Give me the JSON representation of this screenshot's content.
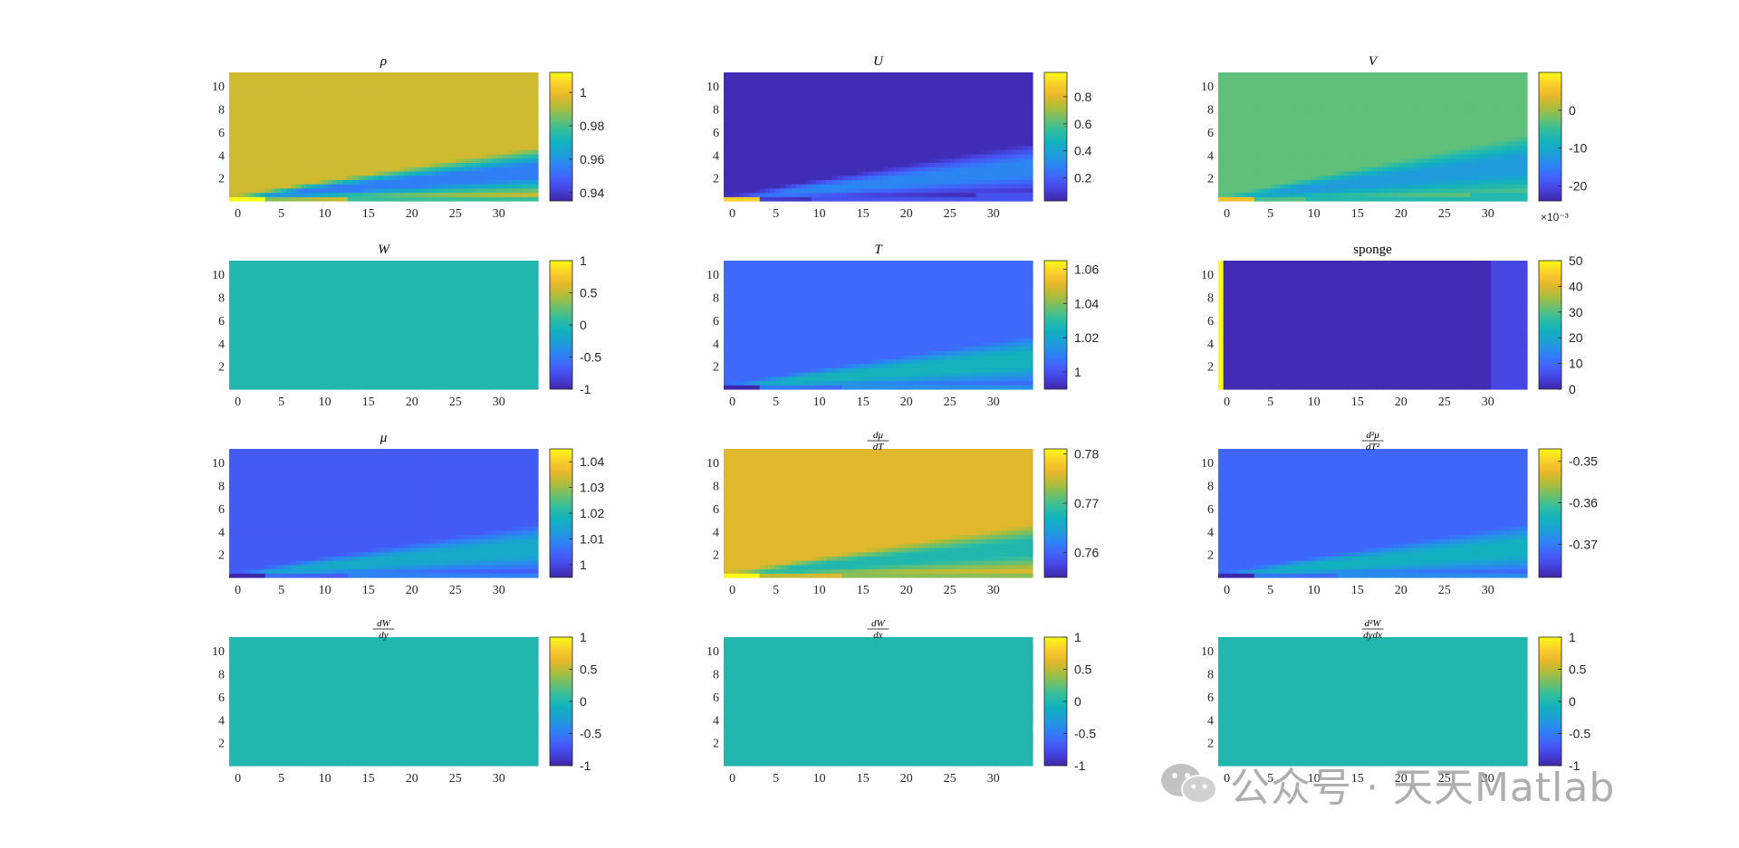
{
  "chart_data": [
    {
      "type": "heatmap",
      "title": "ρ",
      "x_ticks": [
        "0",
        "5",
        "10",
        "15",
        "20",
        "25",
        "30"
      ],
      "y_ticks": [
        "2",
        "4",
        "6",
        "8",
        "10"
      ],
      "xlim": [
        -1,
        34.5
      ],
      "ylim": [
        0,
        11.2
      ],
      "colorbar": {
        "ticks": [
          "1",
          "0.98",
          "0.96",
          "0.94"
        ],
        "tick_values": [
          1,
          0.98,
          0.96,
          0.94
        ],
        "range": [
          0.935,
          1.012
        ]
      },
      "field": {
        "background": 0.995,
        "wake_min": 0.955,
        "wake_slope_top": 0.12,
        "wake_slope_bottom": 0.015,
        "edge_hot": 1.012
      }
    },
    {
      "type": "heatmap",
      "title": "U",
      "x_ticks": [
        "0",
        "5",
        "10",
        "15",
        "20",
        "25",
        "30"
      ],
      "y_ticks": [
        "2",
        "4",
        "6",
        "8",
        "10"
      ],
      "xlim": [
        -1,
        34.5
      ],
      "ylim": [
        0,
        11.2
      ],
      "colorbar": {
        "ticks": [
          "0.8",
          "0.6",
          "0.4",
          "0.2"
        ],
        "tick_values": [
          0.8,
          0.6,
          0.4,
          0.2
        ],
        "range": [
          0.03,
          0.98
        ]
      },
      "field": {
        "background": 0.05,
        "wake_min": 0.3,
        "wake_slope_top": 0.13,
        "wake_slope_bottom": 0.02,
        "edge_hot": 0.9
      }
    },
    {
      "type": "heatmap",
      "title": "V",
      "x_ticks": [
        "0",
        "5",
        "10",
        "15",
        "20",
        "25",
        "30"
      ],
      "y_ticks": [
        "2",
        "4",
        "6",
        "8",
        "10"
      ],
      "xlim": [
        -1,
        34.5
      ],
      "ylim": [
        0,
        11.2
      ],
      "colorbar": {
        "ticks": [
          "0",
          "-10",
          "-20"
        ],
        "tick_values": [
          0,
          -10,
          -20
        ],
        "range": [
          -24,
          10
        ],
        "exponent": "×10⁻³"
      },
      "field": {
        "background": -3,
        "wake_min": -12,
        "wake_slope_top": 0.15,
        "wake_slope_bottom": 0.02,
        "edge_hot": 5
      }
    },
    {
      "type": "heatmap",
      "title": "W",
      "x_ticks": [
        "0",
        "5",
        "10",
        "15",
        "20",
        "25",
        "30"
      ],
      "y_ticks": [
        "2",
        "4",
        "6",
        "8",
        "10"
      ],
      "xlim": [
        -1,
        34.5
      ],
      "ylim": [
        0,
        11.2
      ],
      "colorbar": {
        "ticks": [
          "1",
          "0.5",
          "0",
          "-0.5",
          "-1"
        ],
        "tick_values": [
          1,
          0.5,
          0,
          -0.5,
          -1
        ],
        "range": [
          -1,
          1
        ]
      },
      "field": {
        "uniform": 0
      }
    },
    {
      "type": "heatmap",
      "title": "T",
      "x_ticks": [
        "0",
        "5",
        "10",
        "15",
        "20",
        "25",
        "30"
      ],
      "y_ticks": [
        "2",
        "4",
        "6",
        "8",
        "10"
      ],
      "xlim": [
        -1,
        34.5
      ],
      "ylim": [
        0,
        11.2
      ],
      "colorbar": {
        "ticks": [
          "1.06",
          "1.04",
          "1.02",
          "1"
        ],
        "tick_values": [
          1.06,
          1.04,
          1.02,
          1
        ],
        "range": [
          0.99,
          1.065
        ]
      },
      "field": {
        "background": 1.005,
        "wake_min": 1.025,
        "wake_slope_top": 0.12,
        "wake_slope_bottom": 0.015,
        "edge_hot": 0.99
      }
    },
    {
      "type": "heatmap",
      "title": "sponge",
      "x_ticks": [
        "0",
        "5",
        "10",
        "15",
        "20",
        "25",
        "30"
      ],
      "y_ticks": [
        "2",
        "4",
        "6",
        "8",
        "10"
      ],
      "xlim": [
        -1,
        34.5
      ],
      "ylim": [
        0,
        11.2
      ],
      "colorbar": {
        "ticks": [
          "50",
          "40",
          "30",
          "20",
          "10",
          "0"
        ],
        "tick_values": [
          50,
          40,
          30,
          20,
          10,
          0
        ],
        "range": [
          0,
          50
        ]
      },
      "field": {
        "sponge": true,
        "left_edge": 50,
        "interior": 1,
        "right_edge": 5
      }
    },
    {
      "type": "heatmap",
      "title": "μ",
      "x_ticks": [
        "0",
        "5",
        "10",
        "15",
        "20",
        "25",
        "30"
      ],
      "y_ticks": [
        "2",
        "4",
        "6",
        "8",
        "10"
      ],
      "xlim": [
        -1,
        34.5
      ],
      "ylim": [
        0,
        11.2
      ],
      "colorbar": {
        "ticks": [
          "1.04",
          "1.03",
          "1.02",
          "1.01",
          "1"
        ],
        "tick_values": [
          1.04,
          1.03,
          1.02,
          1.01,
          1
        ],
        "range": [
          0.995,
          1.045
        ]
      },
      "field": {
        "background": 1.003,
        "wake_min": 1.016,
        "wake_slope_top": 0.12,
        "wake_slope_bottom": 0.015,
        "edge_hot": 0.995
      }
    },
    {
      "type": "heatmap",
      "title": "dμ/dT",
      "x_ticks": [
        "0",
        "5",
        "10",
        "15",
        "20",
        "25",
        "30"
      ],
      "y_ticks": [
        "2",
        "4",
        "6",
        "8",
        "10"
      ],
      "xlim": [
        -1,
        34.5
      ],
      "ylim": [
        0,
        11.2
      ],
      "colorbar": {
        "ticks": [
          "0.78",
          "0.77",
          "0.76"
        ],
        "tick_values": [
          0.78,
          0.77,
          0.76
        ],
        "range": [
          0.755,
          0.781
        ]
      },
      "field": {
        "background": 0.776,
        "wake_min": 0.768,
        "wake_slope_top": 0.12,
        "wake_slope_bottom": 0.015,
        "edge_hot": 0.781
      }
    },
    {
      "type": "heatmap",
      "title": "d²μ/dT²",
      "x_ticks": [
        "0",
        "5",
        "10",
        "15",
        "20",
        "25",
        "30"
      ],
      "y_ticks": [
        "2",
        "4",
        "6",
        "8",
        "10"
      ],
      "xlim": [
        -1,
        34.5
      ],
      "ylim": [
        0,
        11.2
      ],
      "colorbar": {
        "ticks": [
          "-0.35",
          "-0.36",
          "-0.37"
        ],
        "tick_values": [
          -0.35,
          -0.36,
          -0.37
        ],
        "range": [
          -0.378,
          -0.347
        ]
      },
      "field": {
        "background": -0.372,
        "wake_min": -0.364,
        "wake_slope_top": 0.12,
        "wake_slope_bottom": 0.015,
        "edge_hot": -0.378
      }
    },
    {
      "type": "heatmap",
      "title": "dW/dy",
      "x_ticks": [
        "0",
        "5",
        "10",
        "15",
        "20",
        "25",
        "30"
      ],
      "y_ticks": [
        "2",
        "4",
        "6",
        "8",
        "10"
      ],
      "xlim": [
        -1,
        34.5
      ],
      "ylim": [
        0,
        11.2
      ],
      "colorbar": {
        "ticks": [
          "1",
          "0.5",
          "0",
          "-0.5",
          "-1"
        ],
        "tick_values": [
          1,
          0.5,
          0,
          -0.5,
          -1
        ],
        "range": [
          -1,
          1
        ]
      },
      "field": {
        "uniform": 0
      }
    },
    {
      "type": "heatmap",
      "title": "dW/dx",
      "x_ticks": [
        "0",
        "5",
        "10",
        "15",
        "20",
        "25",
        "30"
      ],
      "y_ticks": [
        "2",
        "4",
        "6",
        "8",
        "10"
      ],
      "xlim": [
        -1,
        34.5
      ],
      "ylim": [
        0,
        11.2
      ],
      "colorbar": {
        "ticks": [
          "1",
          "0.5",
          "0",
          "-0.5",
          "-1"
        ],
        "tick_values": [
          1,
          0.5,
          0,
          -0.5,
          -1
        ],
        "range": [
          -1,
          1
        ]
      },
      "field": {
        "uniform": 0
      }
    },
    {
      "type": "heatmap",
      "title": "d²W/dydx",
      "x_ticks": [
        "0",
        "5",
        "10",
        "15",
        "20",
        "25",
        "30"
      ],
      "y_ticks": [
        "2",
        "4",
        "6",
        "8",
        "10"
      ],
      "xlim": [
        -1,
        34.5
      ],
      "ylim": [
        0,
        11.2
      ],
      "colorbar": {
        "ticks": [
          "1",
          "0.5",
          "0",
          "-0.5",
          "-1"
        ],
        "tick_values": [
          1,
          0.5,
          0,
          -0.5,
          -1
        ],
        "range": [
          -1,
          1
        ]
      },
      "field": {
        "uniform": 0
      }
    }
  ],
  "titles_math": [
    {
      "kind": "plain",
      "text": "ρ"
    },
    {
      "kind": "plain",
      "text": "U"
    },
    {
      "kind": "plain",
      "text": "V"
    },
    {
      "kind": "plain",
      "text": "W"
    },
    {
      "kind": "plain",
      "text": "T"
    },
    {
      "kind": "upright",
      "text": "sponge"
    },
    {
      "kind": "plain",
      "text": "μ"
    },
    {
      "kind": "frac",
      "num": "dμ",
      "den": "dT"
    },
    {
      "kind": "frac",
      "num": "d²μ",
      "den": "dT²"
    },
    {
      "kind": "frac",
      "num": "dW",
      "den": "dy"
    },
    {
      "kind": "frac",
      "num": "dW",
      "den": "dx"
    },
    {
      "kind": "frac",
      "num": "d²W",
      "den": "dydx"
    }
  ],
  "colormap": [
    "#3e26a8",
    "#4743e0",
    "#4262fb",
    "#2d83f5",
    "#1e9ed8",
    "#12b1be",
    "#30bda0",
    "#6cc06e",
    "#aebd3a",
    "#e8b72b",
    "#fbcf2b",
    "#f9fb14"
  ],
  "watermark": {
    "text": "公众号 · 天天Matlab",
    "icon": "wechat-icon"
  }
}
